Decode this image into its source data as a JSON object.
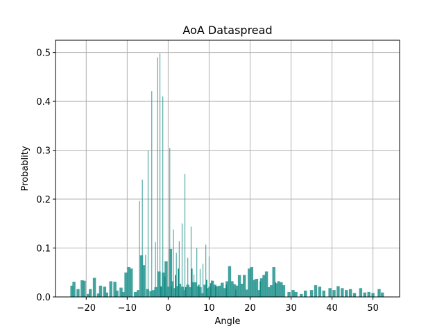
{
  "chart_data": {
    "type": "bar",
    "title": "AoA Dataspread",
    "xlabel": "Angle",
    "ylabel": "Probablity",
    "xlim": [
      -27.5,
      56.5
    ],
    "ylim": [
      0,
      0.525
    ],
    "xticks": [
      -20,
      -10,
      0,
      10,
      20,
      30,
      40,
      50
    ],
    "xtick_labels": [
      "−20",
      "−10",
      "0",
      "10",
      "20",
      "30",
      "40",
      "50"
    ],
    "yticks": [
      0.0,
      0.1,
      0.2,
      0.3,
      0.4,
      0.5
    ],
    "ytick_labels": [
      "0.0",
      "0.1",
      "0.2",
      "0.3",
      "0.4",
      "0.5"
    ],
    "grid": true,
    "legend": "none",
    "colors": {
      "bar": "#2f9993",
      "bar_light": "#5fb4ae",
      "dark_bar": "#0e8a82"
    },
    "wide_bars": {
      "width": 0.75,
      "x": [
        -23.5,
        -23,
        -22,
        -21,
        -20.5,
        -19.5,
        -19,
        -18,
        -17,
        -16.5,
        -15.5,
        -15,
        -14,
        -13,
        -12.5,
        -11.5,
        -11,
        -10.3,
        -9.6,
        -9,
        -8,
        -7.3,
        -6.5,
        -6,
        -5,
        -4.2,
        -3.5,
        -3,
        -2.2,
        -1.6,
        -1.2,
        -0.5,
        0,
        0.6,
        1,
        1.5,
        2.2,
        2.8,
        3.5,
        4,
        4.8,
        5.4,
        6,
        6.6,
        7.2,
        7.8,
        8.4,
        9,
        9.6,
        10.2,
        10.8,
        11.4,
        12,
        12.6,
        13.2,
        13.8,
        14.4,
        15,
        15.6,
        16.2,
        16.8,
        17.4,
        18,
        18.6,
        19.2,
        19.8,
        20.4,
        21,
        21.6,
        22.2,
        22.8,
        23.4,
        24,
        24.6,
        25.2,
        25.8,
        26.4,
        27,
        27.6,
        28.2,
        29.5,
        30.5,
        31.2,
        32.5,
        33.5,
        35,
        36,
        37,
        38,
        39.5,
        40.5,
        41.5,
        42.5,
        43.5,
        44.5,
        45.5,
        47,
        48,
        49,
        50,
        51.5,
        52.3
      ],
      "values": [
        0.023,
        0.031,
        0.016,
        0.034,
        0.033,
        0.006,
        0.016,
        0.039,
        0.007,
        0.023,
        0.021,
        0.009,
        0.032,
        0.031,
        0.013,
        0.019,
        0.01,
        0.05,
        0.061,
        0.058,
        0.01,
        0.014,
        0.085,
        0.065,
        0.016,
        0.012,
        0.014,
        0.02,
        0.052,
        0.02,
        0.05,
        0.073,
        0.021,
        0.098,
        0.032,
        0.018,
        0.022,
        0.027,
        0.021,
        0.014,
        0.025,
        0.02,
        0.03,
        0.03,
        0.022,
        0.02,
        0.008,
        0.025,
        0.018,
        0.021,
        0.033,
        0.025,
        0.022,
        0.023,
        0.029,
        0.018,
        0.032,
        0.063,
        0.032,
        0.026,
        0.023,
        0.045,
        0.027,
        0.045,
        0.015,
        0.058,
        0.061,
        0.035,
        0.037,
        0.014,
        0.038,
        0.045,
        0.052,
        0.02,
        0.024,
        0.061,
        0.028,
        0.032,
        0.03,
        0.024,
        0.01,
        0.014,
        0.01,
        0.006,
        0.013,
        0.014,
        0.024,
        0.021,
        0.013,
        0.018,
        0.014,
        0.022,
        0.018,
        0.014,
        0.016,
        0.008,
        0.018,
        0.009,
        0.01,
        0.008,
        0.016,
        0.009
      ]
    },
    "thin_bars": {
      "width": 0.18,
      "x": [
        -7,
        -6.3,
        -5.5,
        -4.9,
        -4,
        -3.1,
        -2.6,
        -2,
        -1.3,
        -0.4,
        0.4,
        1.3,
        2,
        2.7,
        3.4,
        4.1,
        4.8,
        5.6,
        6.3,
        7,
        7.8,
        8.5,
        9.2,
        10,
        10.7,
        12.4,
        14.6
      ],
      "values": [
        0.196,
        0.24,
        0.086,
        0.299,
        0.421,
        0.112,
        0.49,
        0.498,
        0.41,
        0.01,
        0.305,
        0.138,
        0.09,
        0.114,
        0.15,
        0.251,
        0.08,
        0.144,
        0.046,
        0.1,
        0.057,
        0.068,
        0.107,
        0.083,
        0.034,
        0.014,
        0.02
      ]
    },
    "dark_bars": {
      "width": 0.3,
      "x": [
        -1.8,
        -0.8,
        0.8,
        1.8,
        2.5,
        4.3,
        5.8,
        7.5,
        9.4,
        10.4,
        11.6,
        14.2,
        16.5,
        22.5,
        26.2
      ],
      "values": [
        0.022,
        0.042,
        0.022,
        0.045,
        0.058,
        0.02,
        0.058,
        0.025,
        0.035,
        0.028,
        0.022,
        0.025,
        0.015,
        0.032,
        0.03
      ]
    }
  }
}
